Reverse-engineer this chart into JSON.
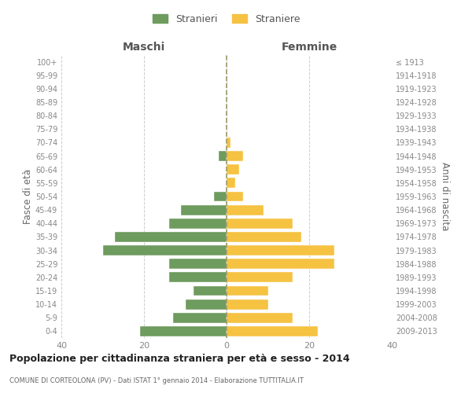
{
  "age_groups": [
    "0-4",
    "5-9",
    "10-14",
    "15-19",
    "20-24",
    "25-29",
    "30-34",
    "35-39",
    "40-44",
    "45-49",
    "50-54",
    "55-59",
    "60-64",
    "65-69",
    "70-74",
    "75-79",
    "80-84",
    "85-89",
    "90-94",
    "95-99",
    "100+"
  ],
  "birth_years": [
    "2009-2013",
    "2004-2008",
    "1999-2003",
    "1994-1998",
    "1989-1993",
    "1984-1988",
    "1979-1983",
    "1974-1978",
    "1969-1973",
    "1964-1968",
    "1959-1963",
    "1954-1958",
    "1949-1953",
    "1944-1948",
    "1939-1943",
    "1934-1938",
    "1929-1933",
    "1924-1928",
    "1919-1923",
    "1914-1918",
    "≤ 1913"
  ],
  "males": [
    21,
    13,
    10,
    8,
    14,
    14,
    30,
    27,
    14,
    11,
    3,
    0,
    0,
    2,
    0,
    0,
    0,
    0,
    0,
    0,
    0
  ],
  "females": [
    22,
    16,
    10,
    10,
    16,
    26,
    26,
    18,
    16,
    9,
    4,
    2,
    3,
    4,
    1,
    0,
    0,
    0,
    0,
    0,
    0
  ],
  "male_color": "#6e9b5e",
  "female_color": "#f5c242",
  "background_color": "#ffffff",
  "grid_color": "#cccccc",
  "title": "Popolazione per cittadinanza straniera per età e sesso - 2014",
  "subtitle": "COMUNE DI CORTEOLONA (PV) - Dati ISTAT 1° gennaio 2014 - Elaborazione TUTTITALIA.IT",
  "ylabel_left": "Fasce di età",
  "ylabel_right": "Anni di nascita",
  "header_maschi": "Maschi",
  "header_femmine": "Femmine",
  "legend_stranieri": "Stranieri",
  "legend_straniere": "Straniere",
  "xlim": 40,
  "tick_color": "#888888",
  "bar_edge_color": "white",
  "dashed_line_color": "#999966"
}
